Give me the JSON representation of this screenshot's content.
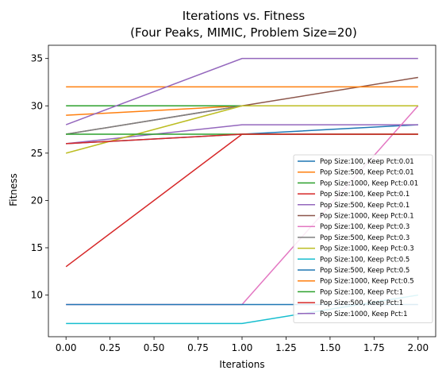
{
  "chart_data": {
    "type": "line",
    "title": "Iterations vs. Fitness",
    "subtitle": "(Four Peaks, MIMIC, Problem Size=20)",
    "xlabel": "Iterations",
    "ylabel": "Fitness",
    "xlim": [
      -0.1,
      2.1
    ],
    "ylim": [
      5.6,
      36.4
    ],
    "xticks": [
      0.0,
      0.25,
      0.5,
      0.75,
      1.0,
      1.25,
      1.5,
      1.75,
      2.0
    ],
    "xtick_labels": [
      "0.00",
      "0.25",
      "0.50",
      "0.75",
      "1.00",
      "1.25",
      "1.50",
      "1.75",
      "2.00"
    ],
    "yticks": [
      10,
      15,
      20,
      25,
      30,
      35
    ],
    "ytick_labels": [
      "10",
      "15",
      "20",
      "25",
      "30",
      "35"
    ],
    "grid": false,
    "legend_position": "lower-right",
    "x": [
      0,
      1,
      2
    ],
    "series": [
      {
        "name": "Pop Size:100, Keep Pct:0.01",
        "color": "#1f77b4",
        "values": [
          26,
          27,
          28
        ]
      },
      {
        "name": "Pop Size:500, Keep Pct:0.01",
        "color": "#ff7f0e",
        "values": [
          29,
          30,
          30
        ]
      },
      {
        "name": "Pop Size:1000, Keep Pct:0.01",
        "color": "#2ca02c",
        "values": [
          30,
          30,
          30
        ]
      },
      {
        "name": "Pop Size:100, Keep Pct:0.1",
        "color": "#d62728",
        "values": [
          13,
          27,
          27
        ]
      },
      {
        "name": "Pop Size:500, Keep Pct:0.1",
        "color": "#9467bd",
        "values": [
          26,
          28,
          28
        ]
      },
      {
        "name": "Pop Size:1000, Keep Pct:0.1",
        "color": "#8c564b",
        "values": [
          27,
          30,
          33
        ]
      },
      {
        "name": "Pop Size:100, Keep Pct:0.3",
        "color": "#e377c2",
        "values": [
          9,
          9,
          30
        ]
      },
      {
        "name": "Pop Size:500, Keep Pct:0.3",
        "color": "#7f7f7f",
        "values": [
          27,
          30,
          30
        ]
      },
      {
        "name": "Pop Size:1000, Keep Pct:0.3",
        "color": "#bcbd22",
        "values": [
          25,
          30,
          30
        ]
      },
      {
        "name": "Pop Size:100, Keep Pct:0.5",
        "color": "#17becf",
        "values": [
          7,
          7,
          10
        ]
      },
      {
        "name": "Pop Size:500, Keep Pct:0.5",
        "color": "#1f77b4",
        "values": [
          9,
          9,
          9
        ]
      },
      {
        "name": "Pop Size:1000, Keep Pct:0.5",
        "color": "#ff7f0e",
        "values": [
          32,
          32,
          32
        ]
      },
      {
        "name": "Pop Size:100, Keep Pct:1",
        "color": "#2ca02c",
        "values": [
          27,
          27,
          27
        ]
      },
      {
        "name": "Pop Size:500, Keep Pct:1",
        "color": "#d62728",
        "values": [
          26,
          27,
          27
        ]
      },
      {
        "name": "Pop Size:1000, Keep Pct:1",
        "color": "#9467bd",
        "values": [
          28,
          35,
          35
        ]
      }
    ]
  }
}
